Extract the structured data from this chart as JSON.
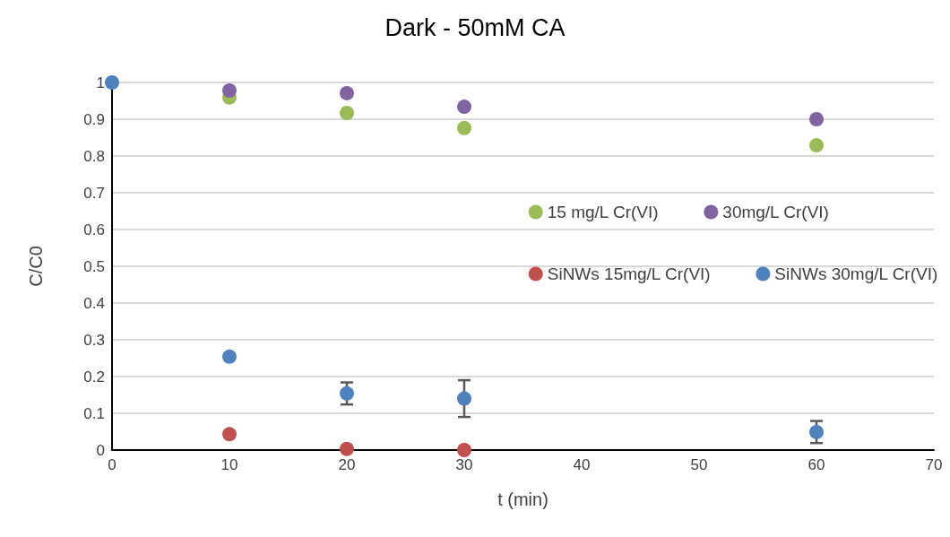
{
  "chart_data": {
    "type": "scatter",
    "title": "Dark - 50mM CA",
    "xlabel": "t (min)",
    "ylabel": "C/C0",
    "x": [
      0,
      10,
      20,
      30,
      60
    ],
    "series": [
      {
        "name": "15 mg/L Cr(VI)",
        "color": "#9bbb59",
        "values": [
          null,
          0.959,
          0.917,
          0.876,
          0.829
        ]
      },
      {
        "name": "30mg/L Cr(VI)",
        "color": "#8064a2",
        "values": [
          null,
          0.978,
          0.971,
          0.934,
          0.9
        ]
      },
      {
        "name": "SiNWs 15mg/L Cr(VI)",
        "color": "#c0504d",
        "values": [
          null,
          0.043,
          0.003,
          0,
          null
        ]
      },
      {
        "name": "SiNWs 30mg/L Cr(VI)",
        "color": "#4f81bd",
        "values": [
          1,
          0.254,
          0.154,
          0.14,
          0.049
        ],
        "errors": [
          null,
          null,
          0.03,
          0.05,
          0.03
        ]
      }
    ],
    "xlim": [
      0,
      70
    ],
    "xticks": [
      0,
      10,
      20,
      30,
      40,
      50,
      60,
      70
    ],
    "ylim": [
      0,
      1
    ],
    "yticks": [
      0,
      0.1,
      0.2,
      0.3,
      0.4,
      0.5,
      0.6,
      0.7,
      0.8,
      0.9,
      1
    ],
    "grid": "y",
    "legend": "right",
    "marker": "circle"
  }
}
